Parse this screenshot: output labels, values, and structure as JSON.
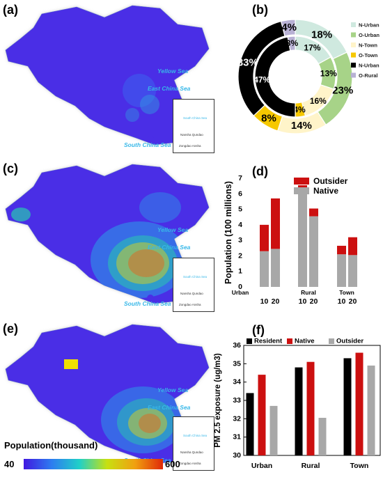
{
  "labels": {
    "a": "(a)",
    "b": "(b)",
    "c": "(c)",
    "d": "(d)",
    "e": "(e)",
    "f": "(f)"
  },
  "map": {
    "seas": [
      "Yellow Sea",
      "East China Sea",
      "South China Sea"
    ],
    "inset_south_china_sea": "South China Sea",
    "inset_island1": "Nansha Qundao",
    "inset_island2": "Zongdao Ansha",
    "colorbar_title": "Population(thousand)",
    "colorbar_min": "40",
    "colorbar_max": "600",
    "colorbar_colors": [
      "#4018e0",
      "#2d7cf0",
      "#20d0c8",
      "#c8e010",
      "#f0a010",
      "#e02808"
    ]
  },
  "chart_data": [
    {
      "type": "pie",
      "panel": "b",
      "legend_position": "right",
      "legend": [
        {
          "name": "N-Urban",
          "color": "#cfe9df"
        },
        {
          "name": "O-Urban",
          "color": "#a7d388"
        },
        {
          "name": "N-Town",
          "color": "#fff4c9"
        },
        {
          "name": "O-Town",
          "color": "#f6c800"
        },
        {
          "name": "N-Urban",
          "color": "#000000"
        },
        {
          "name": "O-Rural",
          "color": "#b8b1d4"
        }
      ],
      "outer_ring": [
        {
          "label": "18%",
          "value": 18,
          "color": "#cfe9df"
        },
        {
          "label": "23%",
          "value": 23,
          "color": "#a7d388"
        },
        {
          "label": "14%",
          "value": 14,
          "color": "#fff4c9"
        },
        {
          "label": "8%",
          "value": 8,
          "color": "#f6c800"
        },
        {
          "label": "33%",
          "value": 33,
          "color": "#000000"
        },
        {
          "label": "4%",
          "value": 4,
          "color": "#b8b1d4"
        }
      ],
      "inner_ring": [
        {
          "label": "17%",
          "value": 17,
          "color": "#cfe9df"
        },
        {
          "label": "13%",
          "value": 13,
          "color": "#a7d388"
        },
        {
          "label": "16%",
          "value": 16,
          "color": "#fff4c9"
        },
        {
          "label": "4%",
          "value": 4,
          "color": "#f6c800"
        },
        {
          "label": "47%",
          "value": 47,
          "color": "#000000"
        },
        {
          "label": "3%",
          "value": 3,
          "color": "#b8b1d4"
        }
      ]
    },
    {
      "type": "bar",
      "stacked": true,
      "panel": "d",
      "ylabel": "Population (100 millions)",
      "ylim": [
        0,
        7
      ],
      "yticks": [
        "0",
        "1",
        "2",
        "3",
        "4",
        "5",
        "6",
        "7"
      ],
      "groups": [
        "Urban",
        "Rural",
        "Town"
      ],
      "categories": [
        "10",
        "20",
        "10",
        "20",
        "10",
        "20"
      ],
      "series": [
        {
          "name": "Native",
          "color": "#a8a8a8",
          "values": [
            2.3,
            2.45,
            6.2,
            4.55,
            2.1,
            2.05
          ]
        },
        {
          "name": "Outsider",
          "color": "#cc1010",
          "values": [
            1.7,
            3.25,
            0.35,
            0.5,
            0.55,
            1.15
          ]
        }
      ],
      "legend_position": "top-right"
    },
    {
      "type": "bar",
      "panel": "f",
      "ylabel": "PM 2.5 exposure (ug/m3)",
      "ylim": [
        30,
        36
      ],
      "yticks": [
        "30",
        "31",
        "32",
        "33",
        "34",
        "35",
        "36"
      ],
      "categories": [
        "Urban",
        "Rural",
        "Town"
      ],
      "series": [
        {
          "name": "Resident",
          "color": "#000000",
          "values": [
            33.4,
            34.8,
            35.3
          ]
        },
        {
          "name": "Native",
          "color": "#cc1010",
          "values": [
            34.4,
            35.1,
            35.6
          ]
        },
        {
          "name": "Outsider",
          "color": "#a8a8a8",
          "values": [
            32.7,
            32.05,
            34.9
          ]
        }
      ],
      "legend_position": "top"
    }
  ]
}
